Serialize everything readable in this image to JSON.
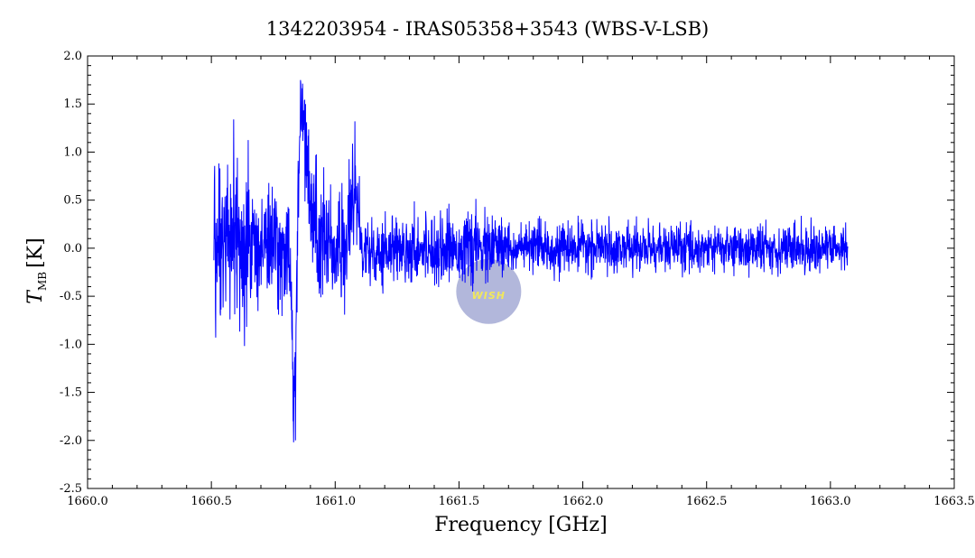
{
  "chart_data": {
    "type": "line",
    "title": "1342203954 - IRAS05358+3543 (WBS-V-LSB)",
    "xlabel": "Frequency [GHz]",
    "ylabel_main": "T",
    "ylabel_sub": "MB",
    "ylabel_unit": "[K]",
    "xlim": [
      1660.0,
      1663.5
    ],
    "ylim": [
      -2.5,
      2.0
    ],
    "x_ticks": [
      "1660.0",
      "1660.5",
      "1661.0",
      "1661.5",
      "1662.0",
      "1662.5",
      "1663.0",
      "1663.5"
    ],
    "y_ticks": [
      "2.0",
      "1.5",
      "1.0",
      "0.5",
      "0.0",
      "-0.5",
      "-1.0",
      "-1.5",
      "-2.0",
      "-2.5"
    ],
    "grid": false,
    "line_color": "#0000ff",
    "series": [
      {
        "x_start": 1660.51,
        "x_end": 1663.07,
        "features": [
          {
            "x": 1660.84,
            "y": -2.0
          },
          {
            "x": 1660.83,
            "y": -1.8
          },
          {
            "x": 1660.86,
            "y": 1.75
          },
          {
            "x": 1660.88,
            "y": 1.5
          },
          {
            "x": 1661.08,
            "y": 1.32
          }
        ]
      }
    ]
  },
  "watermark": {
    "text": "WISH",
    "color": "#8890c8"
  }
}
